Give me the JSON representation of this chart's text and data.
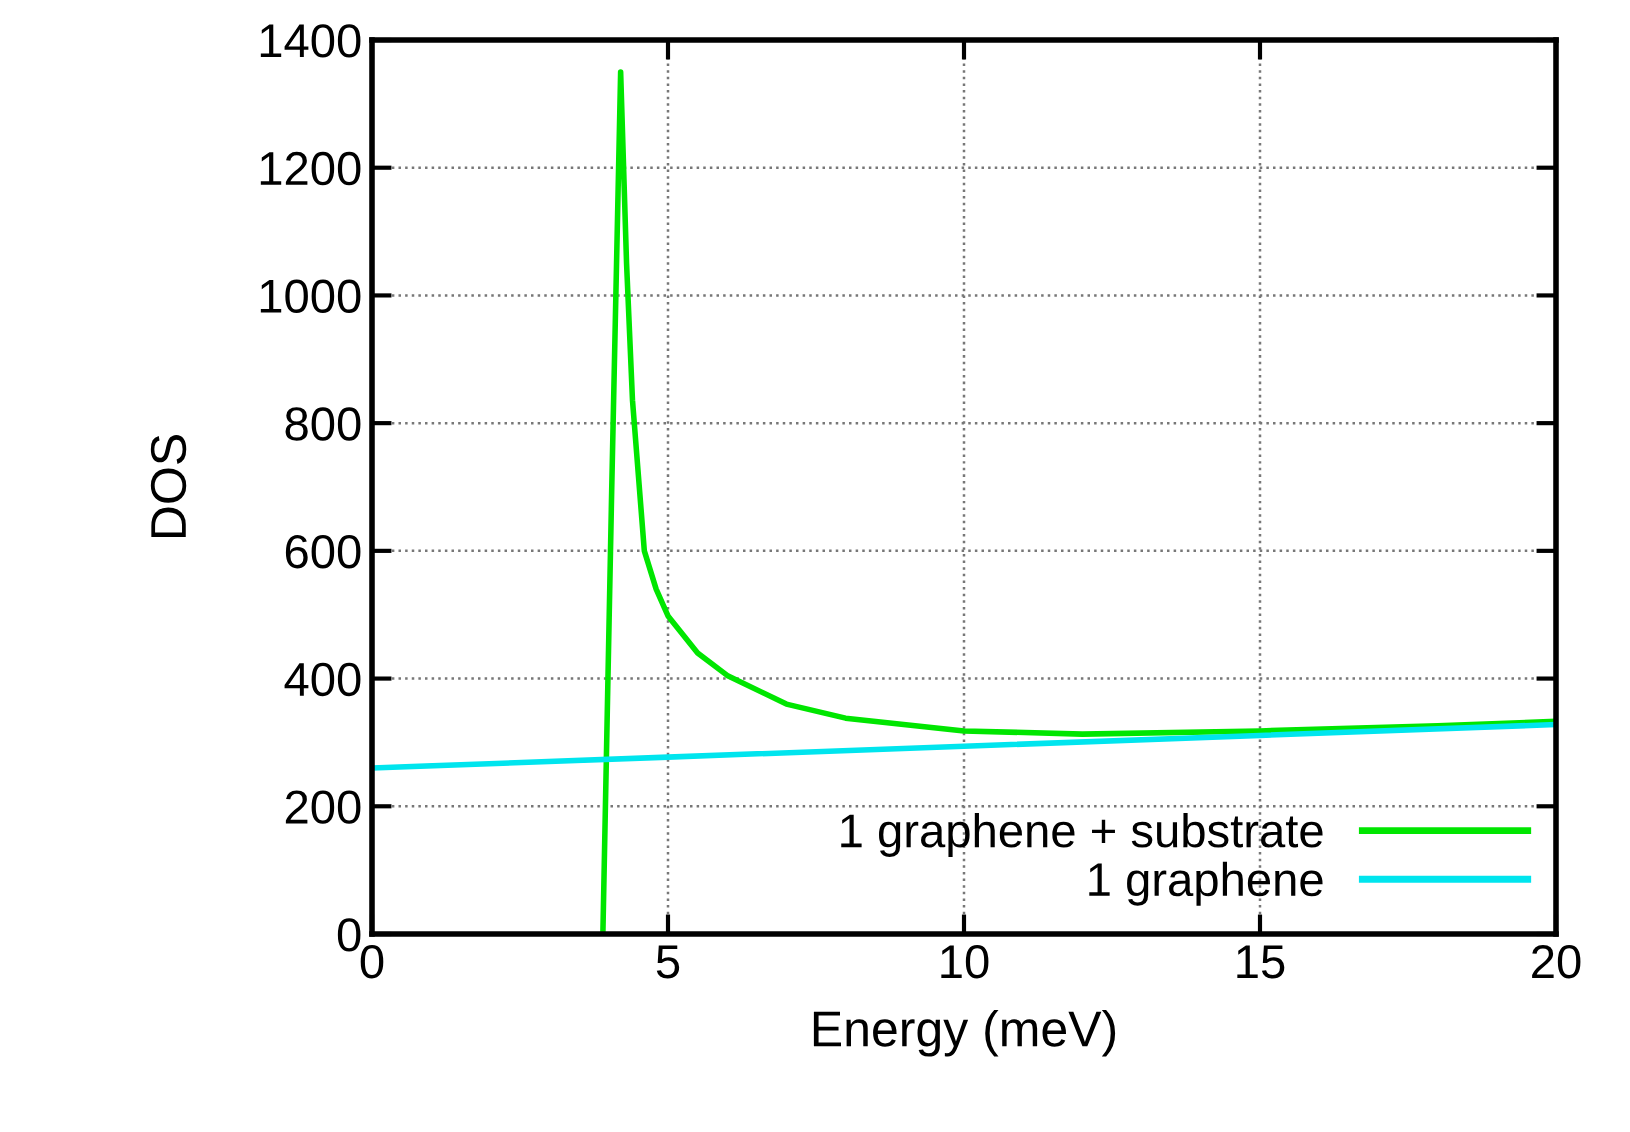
{
  "chart_data": {
    "type": "line",
    "xlabel": "Energy (meV)",
    "ylabel": "DOS",
    "xlim": [
      0,
      20
    ],
    "ylim": [
      0,
      1400
    ],
    "xticks": [
      0,
      5,
      10,
      15,
      20
    ],
    "yticks": [
      0,
      200,
      400,
      600,
      800,
      1000,
      1200,
      1400
    ],
    "grid": true,
    "legend": "bottom right",
    "series": [
      {
        "name": "1 graphene + substrate",
        "color": "#00e600",
        "x": [
          3.9,
          4.05,
          4.2,
          4.3,
          4.4,
          4.6,
          4.8,
          5,
          5.5,
          6,
          7,
          8,
          10,
          12,
          15,
          18,
          20
        ],
        "values": [
          0,
          700,
          1350,
          1050,
          836,
          600,
          540,
          498,
          440,
          405,
          360,
          338,
          318,
          313,
          318,
          326,
          333
        ]
      },
      {
        "name": "1 graphene",
        "color": "#00e5ee",
        "x": [
          0,
          5,
          10,
          15,
          20
        ],
        "values": [
          260,
          277,
          294,
          311,
          328
        ]
      }
    ]
  }
}
